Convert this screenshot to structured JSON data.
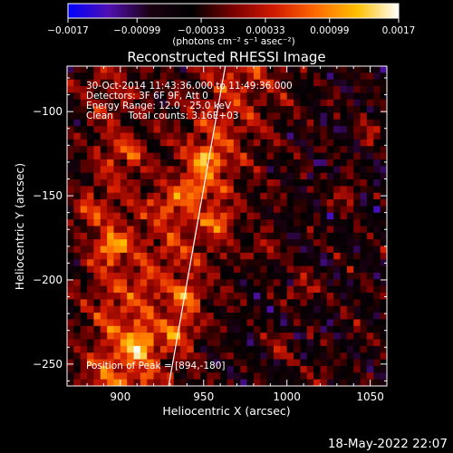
{
  "chart_data": {
    "type": "heatmap",
    "title": "Reconstructed RHESSI Image",
    "xlabel": "Heliocentric X (arcsec)",
    "ylabel": "Heliocentric Y (arcsec)",
    "xlim": [
      868,
      1060
    ],
    "ylim": [
      -263,
      -73
    ],
    "xticks": [
      900,
      950,
      1000,
      1050
    ],
    "yticks": [
      -100,
      -150,
      -200,
      -250
    ],
    "xtick_labels": [
      "900",
      "950",
      "1000",
      "1050"
    ],
    "ytick_labels": [
      "−100",
      "−150",
      "−200",
      "−250"
    ],
    "grid": false,
    "colorbar": {
      "range": [
        -0.0017,
        0.0017
      ],
      "ticks": [
        -0.0017,
        -0.00099,
        -0.00033,
        0.00033,
        0.00099,
        0.0017
      ],
      "tick_labels": [
        "−0.0017",
        "−0.00099",
        "−0.00033",
        "0.00033",
        "0.00099",
        "0.0017"
      ],
      "unit_label": "(photons cm⁻² s⁻¹ asec⁻²)",
      "colormap": [
        "#0000ff",
        "#5010b0",
        "#1a0010",
        "#000000",
        "#7a0000",
        "#d21a00",
        "#ff6a00",
        "#ffc000",
        "#ffffff"
      ]
    },
    "annotations": [
      "30-Oct-2014 11:43:36.000 to 11:49:36.000",
      "Detectors: 3F 6F 9F, Att 0",
      "Energy Range: 12.0 - 25.0 keV",
      "Clean     Total counts: 3.16E+03",
      "Position of Peak = [894,-180]"
    ],
    "limb_line": {
      "x": [
        929,
        963
      ],
      "y": [
        -263,
        -73
      ],
      "color": "#ffffff"
    },
    "peak": {
      "x": 894,
      "y": -180
    },
    "hot_spots": [
      {
        "x": 894,
        "y": -180,
        "level": 1.0
      },
      {
        "x": 952,
        "y": -128,
        "level": 0.95
      },
      {
        "x": 943,
        "y": -146,
        "level": 0.85
      },
      {
        "x": 960,
        "y": -165,
        "level": 0.75
      },
      {
        "x": 935,
        "y": -232,
        "level": 0.8
      },
      {
        "x": 912,
        "y": -238,
        "level": 0.85
      },
      {
        "x": 940,
        "y": -210,
        "level": 0.7
      },
      {
        "x": 1035,
        "y": -148,
        "level": 0.7
      },
      {
        "x": 1010,
        "y": -205,
        "level": 0.65
      },
      {
        "x": 905,
        "y": -125,
        "level": 0.55
      },
      {
        "x": 985,
        "y": -182,
        "level": 0.55
      },
      {
        "x": 1050,
        "y": -110,
        "level": 0.5
      },
      {
        "x": 880,
        "y": -160,
        "level": 0.6
      },
      {
        "x": 995,
        "y": -240,
        "level": 0.5
      },
      {
        "x": 925,
        "y": -155,
        "level": 0.6
      },
      {
        "x": 1020,
        "y": -255,
        "level": 0.5
      }
    ]
  },
  "footer": {
    "date": "18-May-2022 22:07"
  }
}
